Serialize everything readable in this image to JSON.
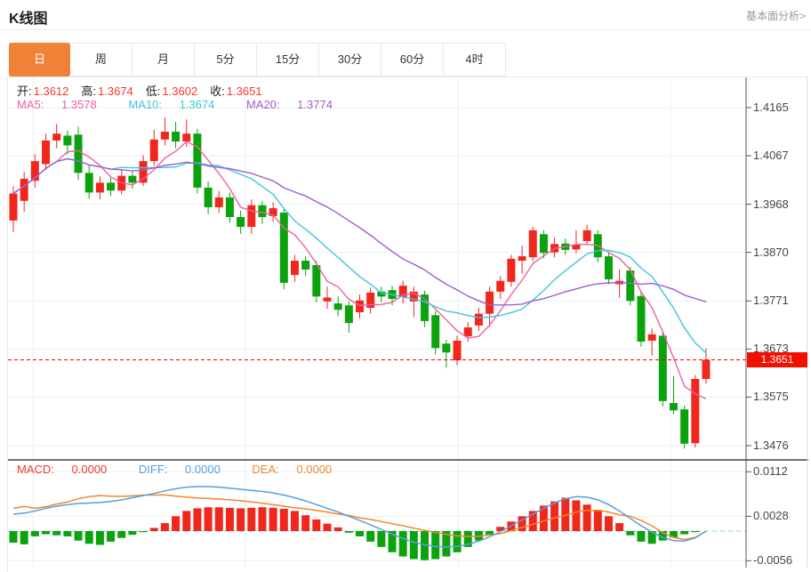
{
  "header": {
    "title": "K线图",
    "link": "基本面分析>"
  },
  "tabs": [
    {
      "label": "日",
      "active": true
    },
    {
      "label": "周",
      "active": false
    },
    {
      "label": "月",
      "active": false
    },
    {
      "label": "5分",
      "active": false
    },
    {
      "label": "15分",
      "active": false
    },
    {
      "label": "30分",
      "active": false
    },
    {
      "label": "60分",
      "active": false
    },
    {
      "label": "4时",
      "active": false
    }
  ],
  "ohlc": {
    "open_label": "开:",
    "open": "1.3612",
    "high_label": "高:",
    "high": "1.3674",
    "low_label": "低:",
    "low": "1.3602",
    "close_label": "收:",
    "close": "1.3651"
  },
  "ma_readout": {
    "ma5_label": "MA5:",
    "ma5": "1.3578",
    "ma10_label": "MA10:",
    "ma10": "1.3674",
    "ma20_label": "MA20:",
    "ma20": "1.3774"
  },
  "macd_readout": {
    "macd_label": "MACD:",
    "macd": "0.0000",
    "diff_label": "DIFF:",
    "diff": "0.0000",
    "dea_label": "DEA:",
    "dea": "0.0000"
  },
  "axis": {
    "current_price_label": "1.3651"
  },
  "colors": {
    "up": "#f0271c",
    "down": "#0aa30e",
    "ma5": "#f05fa0",
    "ma10": "#3fc6dd",
    "ma20": "#a05cd0",
    "diff_line": "#55a0e0",
    "dea_line": "#f0882a",
    "macd_text": "#ef3b2f",
    "value_red": "#f03b2d",
    "tab_active": "#ef8237",
    "current_price": "#f21000",
    "grid": "#e9eff7",
    "zero_dash": "#8ad2e2",
    "axis_line": "#555555"
  },
  "chart_data": {
    "type": "candlestick+macd",
    "title": "K线图",
    "legend": [
      "MA5",
      "MA10",
      "MA20",
      "MACD",
      "DIFF",
      "DEA"
    ],
    "price_ticks": [
      1.4165,
      1.4067,
      1.3968,
      1.387,
      1.3771,
      1.3673,
      1.3575,
      1.3476
    ],
    "current_price": 1.3651,
    "ma_periods": [
      5,
      10,
      20
    ],
    "candles_ohlc": [
      [
        1.3935,
        1.4005,
        1.3912,
        1.399
      ],
      [
        1.3975,
        1.4034,
        1.3953,
        1.402
      ],
      [
        1.4016,
        1.407,
        1.4002,
        1.4056
      ],
      [
        1.405,
        1.4112,
        1.4038,
        1.4098
      ],
      [
        1.4098,
        1.4132,
        1.4082,
        1.4112
      ],
      [
        1.4108,
        1.4118,
        1.407,
        1.4088
      ],
      [
        1.411,
        1.4126,
        1.4018,
        1.4032
      ],
      [
        1.4032,
        1.4048,
        1.398,
        1.3992
      ],
      [
        1.3992,
        1.4025,
        1.3978,
        1.4012
      ],
      [
        1.4012,
        1.4022,
        1.3985,
        1.3996
      ],
      [
        1.3996,
        1.4038,
        1.3988,
        1.4026
      ],
      [
        1.4026,
        1.4035,
        1.4,
        1.4012
      ],
      [
        1.4012,
        1.4068,
        1.4005,
        1.4056
      ],
      [
        1.4056,
        1.412,
        1.4046,
        1.41
      ],
      [
        1.41,
        1.4145,
        1.4088,
        1.4116
      ],
      [
        1.4116,
        1.4136,
        1.4082,
        1.4096
      ],
      [
        1.4096,
        1.4141,
        1.4085,
        1.4112
      ],
      [
        1.4112,
        1.4122,
        1.399,
        1.4002
      ],
      [
        1.4002,
        1.4015,
        1.3948,
        1.3962
      ],
      [
        1.3962,
        1.3995,
        1.395,
        1.3982
      ],
      [
        1.3982,
        1.3992,
        1.393,
        1.3942
      ],
      [
        1.3942,
        1.3955,
        1.3908,
        1.3922
      ],
      [
        1.3922,
        1.3978,
        1.3908,
        1.3966
      ],
      [
        1.3966,
        1.3975,
        1.3928,
        1.3942
      ],
      [
        1.3944,
        1.3972,
        1.3932,
        1.396
      ],
      [
        1.3951,
        1.3958,
        1.3795,
        1.3808
      ],
      [
        1.3824,
        1.3865,
        1.381,
        1.3853
      ],
      [
        1.3853,
        1.3862,
        1.3822,
        1.3835
      ],
      [
        1.3844,
        1.3852,
        1.3768,
        1.378
      ],
      [
        1.377,
        1.38,
        1.3755,
        1.3778
      ],
      [
        1.3766,
        1.378,
        1.374,
        1.3753
      ],
      [
        1.3762,
        1.377,
        1.3706,
        1.3726
      ],
      [
        1.3748,
        1.3784,
        1.3736,
        1.3772
      ],
      [
        1.3757,
        1.3798,
        1.3745,
        1.3788
      ],
      [
        1.379,
        1.38,
        1.3768,
        1.378
      ],
      [
        1.3793,
        1.3802,
        1.3762,
        1.3775
      ],
      [
        1.3779,
        1.3812,
        1.3766,
        1.3802
      ],
      [
        1.377,
        1.38,
        1.3738,
        1.379
      ],
      [
        1.3784,
        1.3792,
        1.3718,
        1.373
      ],
      [
        1.3742,
        1.375,
        1.3662,
        1.3675
      ],
      [
        1.3684,
        1.3692,
        1.3635,
        1.3666
      ],
      [
        1.365,
        1.37,
        1.364,
        1.369
      ],
      [
        1.3699,
        1.3728,
        1.3688,
        1.3717
      ],
      [
        1.3721,
        1.3757,
        1.371,
        1.3745
      ],
      [
        1.3745,
        1.38,
        1.3718,
        1.379
      ],
      [
        1.379,
        1.3822,
        1.3775,
        1.3812
      ],
      [
        1.381,
        1.3865,
        1.38,
        1.3857
      ],
      [
        1.3853,
        1.3884,
        1.3826,
        1.3862
      ],
      [
        1.386,
        1.3922,
        1.3852,
        1.3915
      ],
      [
        1.3907,
        1.3915,
        1.3858,
        1.3869
      ],
      [
        1.387,
        1.39,
        1.386,
        1.3887
      ],
      [
        1.3888,
        1.3898,
        1.3865,
        1.3875
      ],
      [
        1.3876,
        1.3915,
        1.3868,
        1.3885
      ],
      [
        1.3893,
        1.3926,
        1.3885,
        1.3915
      ],
      [
        1.3907,
        1.3915,
        1.385,
        1.386
      ],
      [
        1.3862,
        1.387,
        1.3805,
        1.3815
      ],
      [
        1.3805,
        1.3835,
        1.3778,
        1.3812
      ],
      [
        1.3833,
        1.384,
        1.3762,
        1.3771
      ],
      [
        1.3781,
        1.379,
        1.3678,
        1.3688
      ],
      [
        1.369,
        1.3715,
        1.366,
        1.3703
      ],
      [
        1.37,
        1.3708,
        1.3556,
        1.3567
      ],
      [
        1.3563,
        1.3618,
        1.354,
        1.3548
      ],
      [
        1.355,
        1.3558,
        1.347,
        1.348
      ],
      [
        1.3481,
        1.362,
        1.3472,
        1.3612
      ],
      [
        1.3612,
        1.3674,
        1.3602,
        1.3651
      ]
    ],
    "macd": {
      "ticks": [
        0.0112,
        0.0028,
        -0.0056
      ],
      "histogram": [
        -0.0022,
        -0.0025,
        -0.001,
        -0.0006,
        -0.0008,
        -0.001,
        -0.0018,
        -0.0024,
        -0.0026,
        -0.002,
        -0.0013,
        -0.0007,
        -0.0002,
        0.0006,
        0.0015,
        0.0028,
        0.0038,
        0.0043,
        0.0045,
        0.0045,
        0.0044,
        0.0043,
        0.0044,
        0.0045,
        0.0044,
        0.0042,
        0.0038,
        0.003,
        0.0022,
        0.0014,
        0.0007,
        -0.0003,
        -0.001,
        -0.002,
        -0.003,
        -0.004,
        -0.0048,
        -0.0053,
        -0.0055,
        -0.0053,
        -0.0048,
        -0.004,
        -0.003,
        -0.0018,
        -0.0008,
        0.0008,
        0.0018,
        0.0028,
        0.0038,
        0.0048,
        0.0056,
        0.0063,
        0.0058,
        0.005,
        0.004,
        0.0028,
        0.0015,
        -0.0008,
        -0.002,
        -0.0024,
        -0.0018,
        -0.0012,
        -0.0006,
        -0.0002,
        0.0
      ],
      "diff": [
        0.0032,
        0.0034,
        0.0038,
        0.0043,
        0.0047,
        0.005,
        0.0052,
        0.0053,
        0.0054,
        0.0056,
        0.0059,
        0.0063,
        0.0067,
        0.0071,
        0.0076,
        0.008,
        0.0083,
        0.0084,
        0.0084,
        0.0083,
        0.0081,
        0.0079,
        0.0077,
        0.0075,
        0.0072,
        0.0068,
        0.0063,
        0.0057,
        0.005,
        0.0043,
        0.0036,
        0.0028,
        0.002,
        0.0012,
        0.0003,
        -0.0006,
        -0.0014,
        -0.0021,
        -0.0026,
        -0.0029,
        -0.003,
        -0.0029,
        -0.0025,
        -0.0019,
        -0.0011,
        -0.0001,
        0.001,
        0.0021,
        0.0032,
        0.0043,
        0.0053,
        0.0061,
        0.0065,
        0.0064,
        0.0059,
        0.005,
        0.0038,
        0.0024,
        0.001,
        -0.0002,
        -0.0012,
        -0.0018,
        -0.0019,
        -0.0013,
        0.0
      ],
      "last_values": {
        "macd": 0.0,
        "diff": 0.0,
        "dea": 0.0
      }
    }
  }
}
